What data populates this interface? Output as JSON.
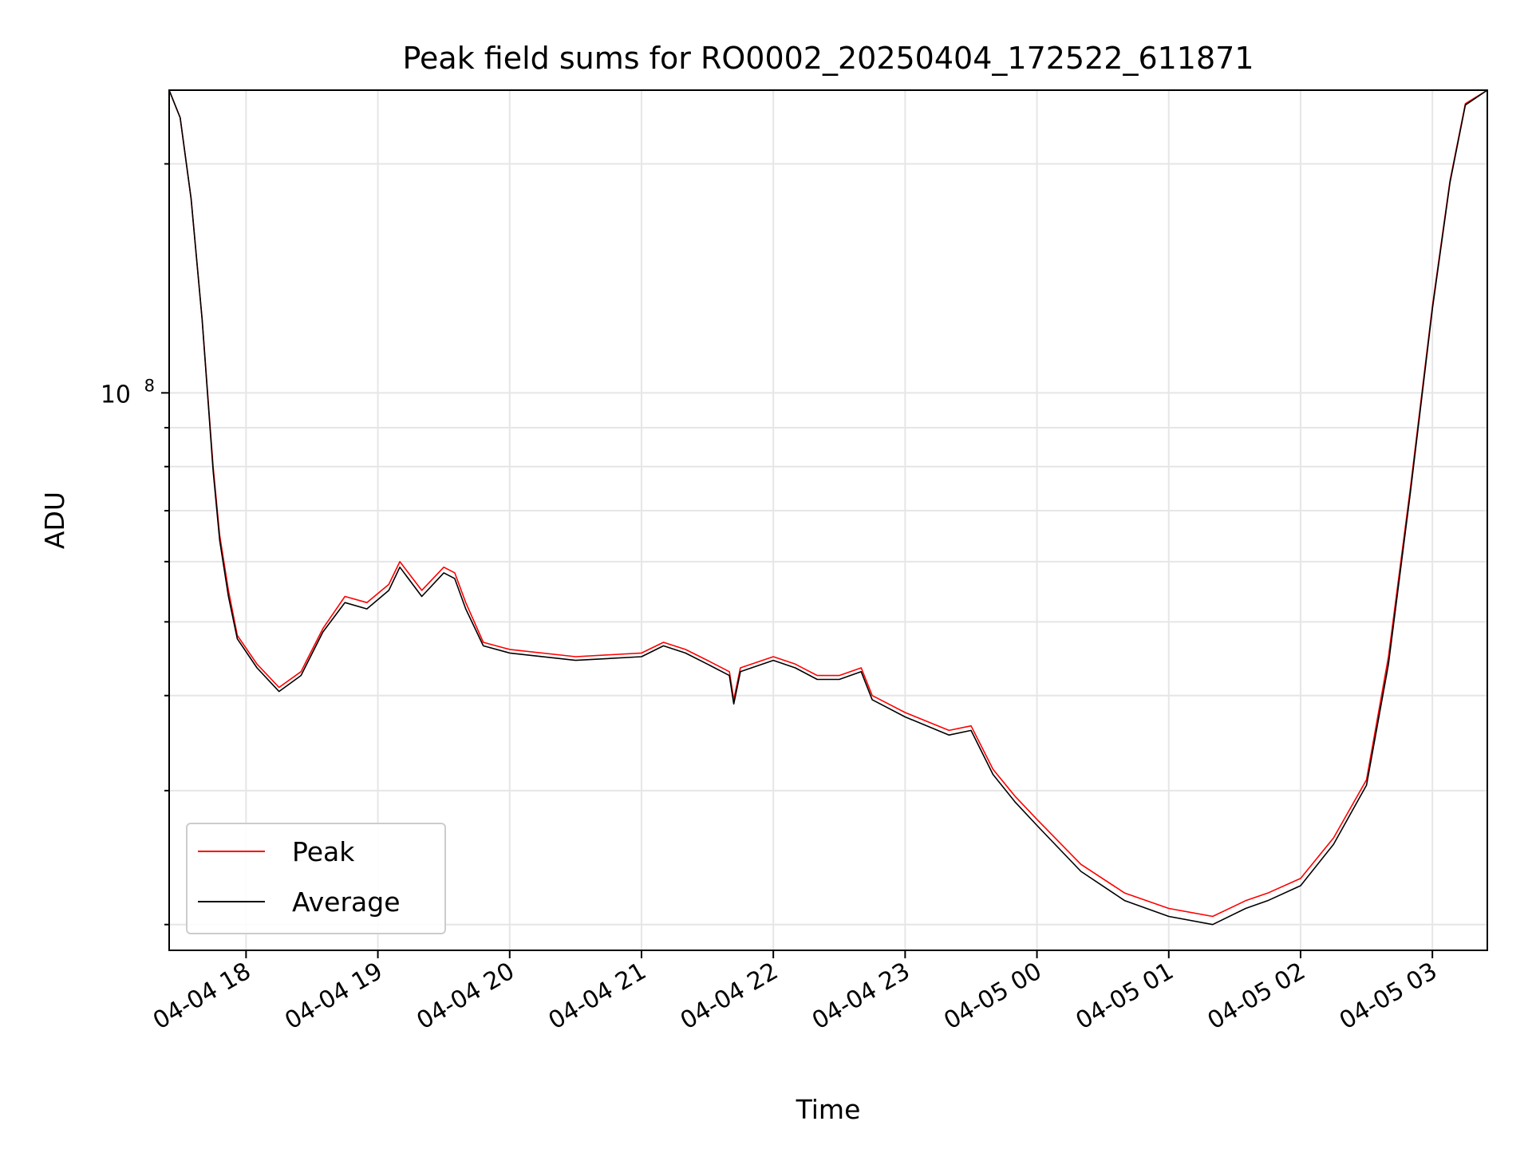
{
  "chart_data": {
    "type": "line",
    "title": "Peak field sums for RO0002_20250404_172522_611871",
    "xlabel": "Time",
    "ylabel": "ADU",
    "yscale": "log",
    "grid": true,
    "legend_position": "lower-left",
    "x_ticks": [
      "04-04 18",
      "04-04 19",
      "04-04 20",
      "04-04 21",
      "04-04 22",
      "04-04 23",
      "04-05 00",
      "04-05 01",
      "04-05 02",
      "04-05 03"
    ],
    "y_ticks": [
      {
        "label_base": "10",
        "label_exp": "8",
        "value": 100000000
      }
    ],
    "xlim": [
      "2025-04-04 17:25",
      "2025-04-05 03:25"
    ],
    "ylim": [
      18500000,
      250000000
    ],
    "series": [
      {
        "name": "Peak",
        "color": "#ff0000",
        "points": [
          [
            "2025-04-04 17:25",
            250000000
          ],
          [
            "2025-04-04 17:30",
            230000000
          ],
          [
            "2025-04-04 17:35",
            180000000
          ],
          [
            "2025-04-04 17:40",
            125000000
          ],
          [
            "2025-04-04 17:45",
            80000000
          ],
          [
            "2025-04-04 17:48",
            65000000
          ],
          [
            "2025-04-04 17:52",
            55000000
          ],
          [
            "2025-04-04 17:56",
            48000000
          ],
          [
            "2025-04-04 18:05",
            44000000
          ],
          [
            "2025-04-04 18:15",
            41000000
          ],
          [
            "2025-04-04 18:25",
            43000000
          ],
          [
            "2025-04-04 18:35",
            49000000
          ],
          [
            "2025-04-04 18:45",
            54000000
          ],
          [
            "2025-04-04 18:55",
            53000000
          ],
          [
            "2025-04-04 19:05",
            56000000
          ],
          [
            "2025-04-04 19:10",
            60000000
          ],
          [
            "2025-04-04 19:20",
            55000000
          ],
          [
            "2025-04-04 19:30",
            59000000
          ],
          [
            "2025-04-04 19:35",
            58000000
          ],
          [
            "2025-04-04 19:40",
            53000000
          ],
          [
            "2025-04-04 19:48",
            47000000
          ],
          [
            "2025-04-04 20:00",
            46000000
          ],
          [
            "2025-04-04 20:30",
            45000000
          ],
          [
            "2025-04-04 21:00",
            45500000
          ],
          [
            "2025-04-04 21:10",
            47000000
          ],
          [
            "2025-04-04 21:20",
            46000000
          ],
          [
            "2025-04-04 21:30",
            44500000
          ],
          [
            "2025-04-04 21:40",
            43000000
          ],
          [
            "2025-04-04 21:42",
            39500000
          ],
          [
            "2025-04-04 21:45",
            43500000
          ],
          [
            "2025-04-04 22:00",
            45000000
          ],
          [
            "2025-04-04 22:10",
            44000000
          ],
          [
            "2025-04-04 22:20",
            42500000
          ],
          [
            "2025-04-04 22:30",
            42500000
          ],
          [
            "2025-04-04 22:40",
            43500000
          ],
          [
            "2025-04-04 22:45",
            40000000
          ],
          [
            "2025-04-04 23:00",
            38000000
          ],
          [
            "2025-04-04 23:20",
            36000000
          ],
          [
            "2025-04-04 23:30",
            36500000
          ],
          [
            "2025-04-04 23:40",
            32000000
          ],
          [
            "2025-04-04 23:50",
            29500000
          ],
          [
            "2025-04-05 00:00",
            27500000
          ],
          [
            "2025-04-05 00:20",
            24000000
          ],
          [
            "2025-04-05 00:40",
            22000000
          ],
          [
            "2025-04-05 01:00",
            21000000
          ],
          [
            "2025-04-05 01:20",
            20500000
          ],
          [
            "2025-04-05 01:35",
            21500000
          ],
          [
            "2025-04-05 01:45",
            22000000
          ],
          [
            "2025-04-05 02:00",
            23000000
          ],
          [
            "2025-04-05 02:15",
            26000000
          ],
          [
            "2025-04-05 02:30",
            31000000
          ],
          [
            "2025-04-05 02:40",
            45000000
          ],
          [
            "2025-04-05 02:50",
            75000000
          ],
          [
            "2025-04-05 03:00",
            130000000
          ],
          [
            "2025-04-05 03:08",
            190000000
          ],
          [
            "2025-04-05 03:15",
            240000000
          ],
          [
            "2025-04-05 03:25",
            250000000
          ]
        ]
      },
      {
        "name": "Average",
        "color": "#000000",
        "points": [
          [
            "2025-04-04 17:25",
            250000000
          ],
          [
            "2025-04-04 17:30",
            230000000
          ],
          [
            "2025-04-04 17:35",
            180000000
          ],
          [
            "2025-04-04 17:40",
            125000000
          ],
          [
            "2025-04-04 17:45",
            79000000
          ],
          [
            "2025-04-04 17:48",
            64000000
          ],
          [
            "2025-04-04 17:52",
            54000000
          ],
          [
            "2025-04-04 17:56",
            47500000
          ],
          [
            "2025-04-04 18:05",
            43500000
          ],
          [
            "2025-04-04 18:15",
            40500000
          ],
          [
            "2025-04-04 18:25",
            42500000
          ],
          [
            "2025-04-04 18:35",
            48500000
          ],
          [
            "2025-04-04 18:45",
            53000000
          ],
          [
            "2025-04-04 18:55",
            52000000
          ],
          [
            "2025-04-04 19:05",
            55000000
          ],
          [
            "2025-04-04 19:10",
            59000000
          ],
          [
            "2025-04-04 19:20",
            54000000
          ],
          [
            "2025-04-04 19:30",
            58000000
          ],
          [
            "2025-04-04 19:35",
            57000000
          ],
          [
            "2025-04-04 19:40",
            52000000
          ],
          [
            "2025-04-04 19:48",
            46500000
          ],
          [
            "2025-04-04 20:00",
            45500000
          ],
          [
            "2025-04-04 20:30",
            44500000
          ],
          [
            "2025-04-04 21:00",
            45000000
          ],
          [
            "2025-04-04 21:10",
            46500000
          ],
          [
            "2025-04-04 21:20",
            45500000
          ],
          [
            "2025-04-04 21:30",
            44000000
          ],
          [
            "2025-04-04 21:40",
            42500000
          ],
          [
            "2025-04-04 21:42",
            39000000
          ],
          [
            "2025-04-04 21:45",
            43000000
          ],
          [
            "2025-04-04 22:00",
            44500000
          ],
          [
            "2025-04-04 22:10",
            43500000
          ],
          [
            "2025-04-04 22:20",
            42000000
          ],
          [
            "2025-04-04 22:30",
            42000000
          ],
          [
            "2025-04-04 22:40",
            43000000
          ],
          [
            "2025-04-04 22:45",
            39500000
          ],
          [
            "2025-04-04 23:00",
            37500000
          ],
          [
            "2025-04-04 23:20",
            35500000
          ],
          [
            "2025-04-04 23:30",
            36000000
          ],
          [
            "2025-04-04 23:40",
            31500000
          ],
          [
            "2025-04-04 23:50",
            29000000
          ],
          [
            "2025-04-05 00:00",
            27000000
          ],
          [
            "2025-04-05 00:20",
            23500000
          ],
          [
            "2025-04-05 00:40",
            21500000
          ],
          [
            "2025-04-05 01:00",
            20500000
          ],
          [
            "2025-04-05 01:20",
            20000000
          ],
          [
            "2025-04-05 01:35",
            21000000
          ],
          [
            "2025-04-05 01:45",
            21500000
          ],
          [
            "2025-04-05 02:00",
            22500000
          ],
          [
            "2025-04-05 02:15",
            25500000
          ],
          [
            "2025-04-05 02:30",
            30500000
          ],
          [
            "2025-04-05 02:40",
            44000000
          ],
          [
            "2025-04-05 02:50",
            74000000
          ],
          [
            "2025-04-05 03:00",
            129000000
          ],
          [
            "2025-04-05 03:08",
            189000000
          ],
          [
            "2025-04-05 03:15",
            239000000
          ],
          [
            "2025-04-05 03:25",
            250000000
          ]
        ]
      }
    ]
  }
}
